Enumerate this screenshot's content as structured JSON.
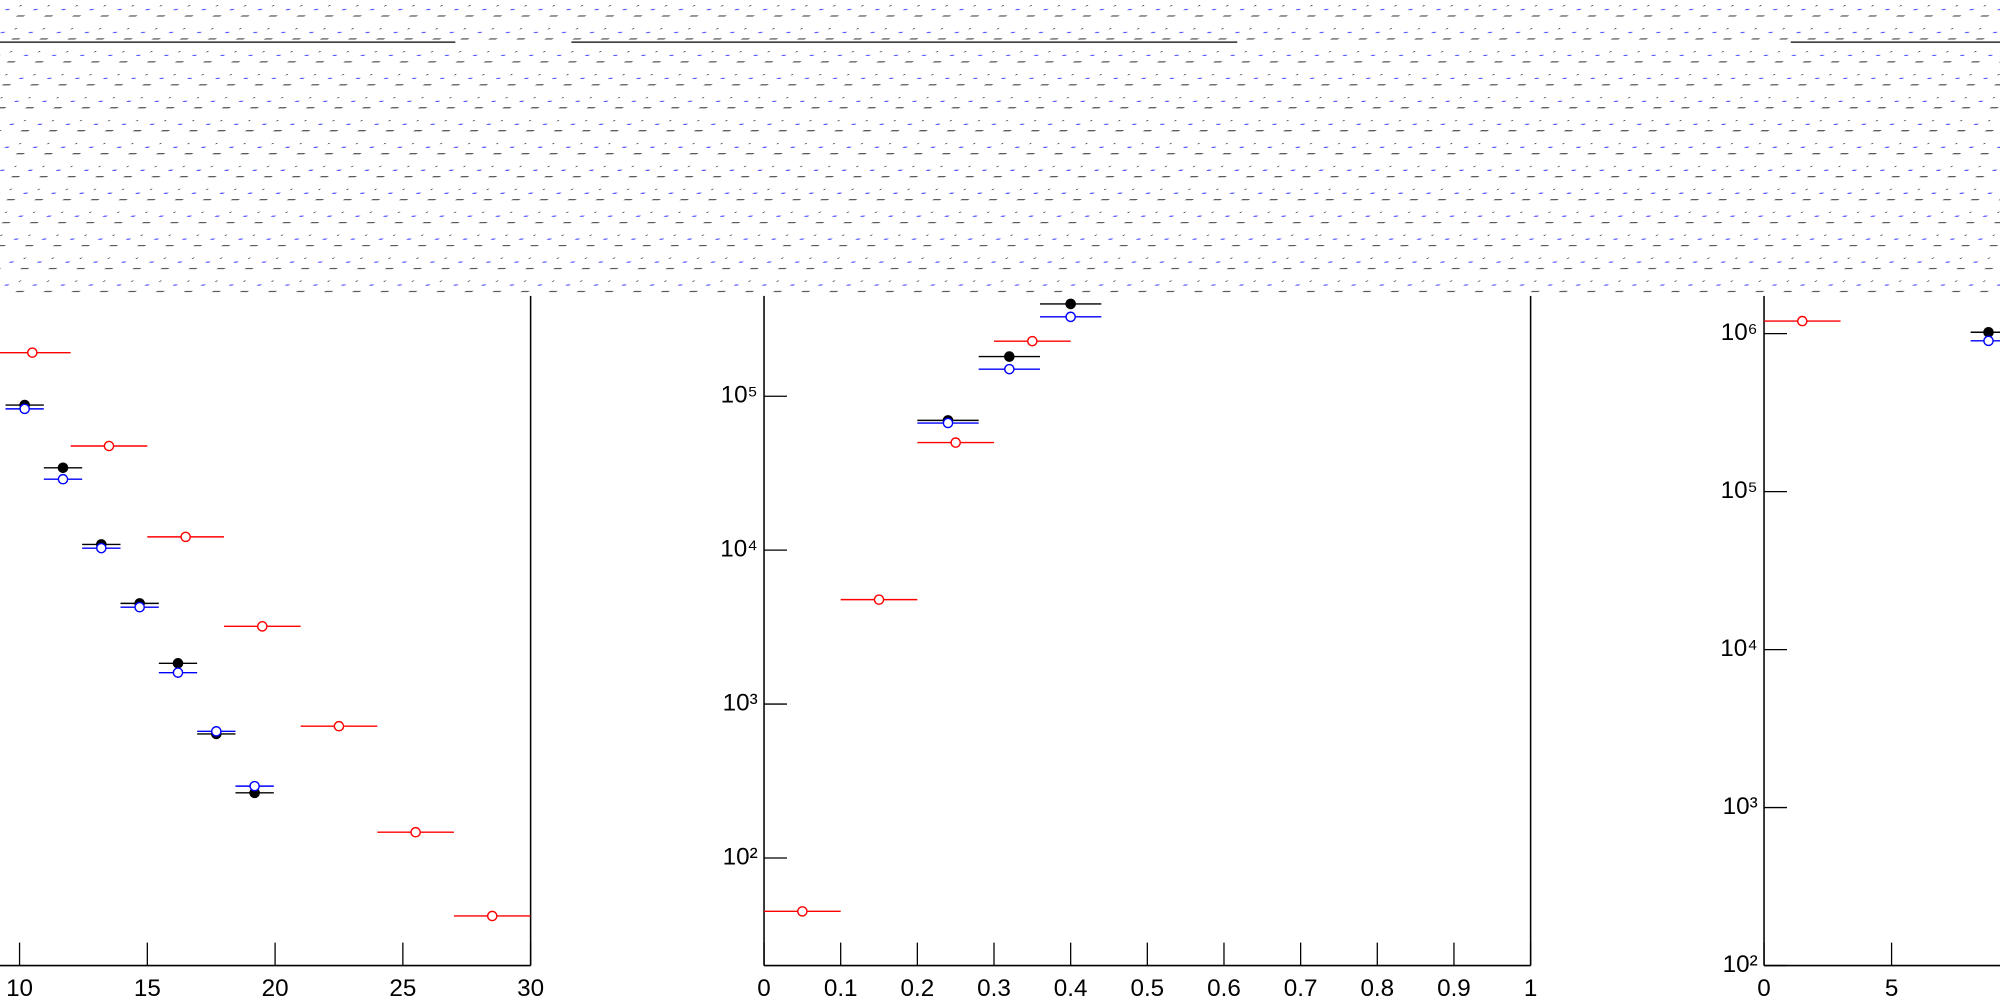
{
  "chart_data": [
    {
      "type": "scatter",
      "log_y": true,
      "xlim": [
        0,
        30
      ],
      "ylim": [
        20,
        20000000
      ],
      "xticks": [
        10,
        15,
        20,
        25,
        30
      ],
      "yticks": [],
      "series": [
        {
          "color": "#ff0000",
          "marker": "open",
          "xerr": 1.5,
          "x": [
            10.5,
            13.5,
            16.5,
            19.5,
            22.5,
            25.5,
            28.5
          ],
          "values": [
            192000,
            47500,
            12200,
            3200,
            718,
            147,
            42
          ]
        },
        {
          "color": "#000000",
          "marker": "filled",
          "xerr": 0.75,
          "x": [
            10.2,
            11.7,
            13.2,
            14.7,
            16.2,
            17.7,
            19.2
          ],
          "values": [
            87700,
            34300,
            10900,
            4510,
            1840,
            640,
            265
          ]
        },
        {
          "color": "#0000ff",
          "marker": "open",
          "xerr": 0.75,
          "x": [
            10.2,
            11.7,
            13.2,
            14.7,
            16.2,
            17.7,
            19.2
          ],
          "values": [
            82800,
            28900,
            10300,
            4260,
            1600,
            665,
            293
          ]
        }
      ]
    },
    {
      "type": "scatter",
      "log_y": true,
      "xlim": [
        0,
        1
      ],
      "ylim": [
        20,
        20000000
      ],
      "xticks": [
        0,
        0.1,
        0.2,
        0.3,
        0.4,
        0.5,
        0.6,
        0.7,
        0.8,
        0.9,
        1
      ],
      "yticks": [
        {
          "value": 100,
          "label": "10²"
        },
        {
          "value": 1000,
          "label": "10³"
        },
        {
          "value": 10000,
          "label": "10⁴"
        },
        {
          "value": 100000,
          "label": "10⁵"
        }
      ],
      "series": [
        {
          "color": "#ff0000",
          "marker": "open",
          "xerr": 0.05,
          "x": [
            0.05,
            0.15,
            0.25,
            0.35
          ],
          "values": [
            45,
            4770,
            50000,
            228000
          ]
        },
        {
          "color": "#000000",
          "marker": "filled",
          "xerr": 0.04,
          "x": [
            0.24,
            0.32,
            0.4
          ],
          "values": [
            69700,
            181000,
            398000
          ]
        },
        {
          "color": "#0000ff",
          "marker": "open",
          "xerr": 0.04,
          "x": [
            0.24,
            0.32,
            0.4
          ],
          "values": [
            67000,
            150000,
            328000
          ]
        }
      ]
    },
    {
      "type": "scatter",
      "log_y": true,
      "xlim": [
        0,
        15
      ],
      "ylim": [
        100,
        70000000
      ],
      "xticks": [
        0,
        5
      ],
      "yticks": [
        {
          "value": 100,
          "label": "10²"
        },
        {
          "value": 1000,
          "label": "10³"
        },
        {
          "value": 10000,
          "label": "10⁴"
        },
        {
          "value": 100000,
          "label": "10⁵"
        },
        {
          "value": 1000000,
          "label": "10⁶"
        }
      ],
      "series": [
        {
          "color": "#ff0000",
          "marker": "open",
          "xerr": 1.5,
          "x": [
            1.5
          ],
          "values": [
            1200000
          ]
        },
        {
          "color": "#000000",
          "marker": "filled",
          "xerr": 0.7,
          "x": [
            8.8
          ],
          "values": [
            1020000
          ]
        },
        {
          "color": "#0000ff",
          "marker": "open",
          "xerr": 0.7,
          "x": [
            8.8
          ],
          "values": [
            900000
          ]
        }
      ]
    }
  ]
}
